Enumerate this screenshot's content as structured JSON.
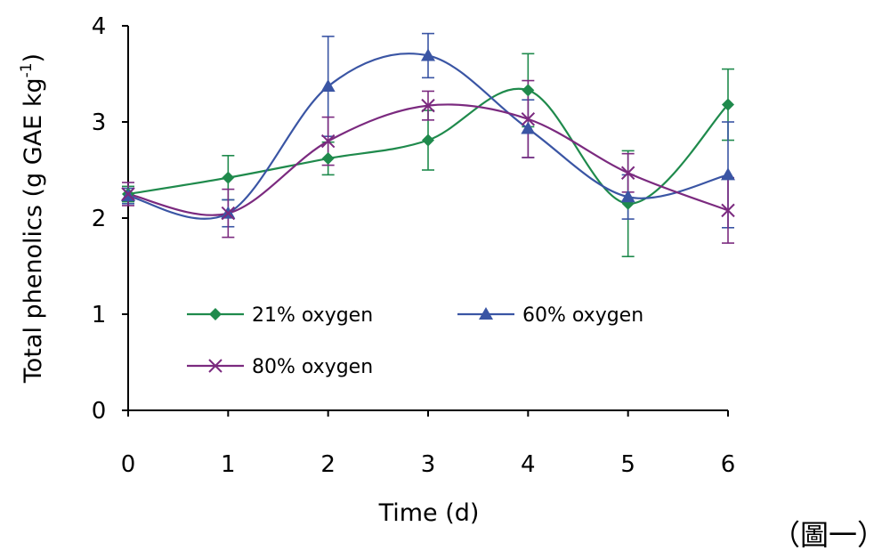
{
  "chart_data": {
    "type": "line",
    "title": "",
    "xlabel": "Time (d)",
    "ylabel_main": "Total phenolics (g GAE kg",
    "ylabel_sup": "-1",
    "ylabel_close": ")",
    "x": [
      0,
      1,
      2,
      3,
      4,
      5,
      6
    ],
    "x_tick_labels": [
      "0",
      "1",
      "2",
      "3",
      "4",
      "5",
      "6"
    ],
    "xlim": [
      0,
      6
    ],
    "ylim": [
      0,
      4
    ],
    "y_ticks": [
      0,
      1,
      2,
      3,
      4
    ],
    "y_tick_labels": [
      "0",
      "1",
      "2",
      "3",
      "4"
    ],
    "grid": false,
    "legend_position": "lower-left inside",
    "series": [
      {
        "name": "21% oxygen",
        "color": "#1f8a4c",
        "marker": "diamond",
        "values": [
          2.25,
          2.42,
          2.62,
          2.81,
          3.33,
          2.15,
          3.18
        ],
        "errors": [
          0.08,
          0.23,
          0.17,
          0.31,
          0.38,
          0.55,
          0.37
        ]
      },
      {
        "name": "60% oxygen",
        "color": "#3a55a4",
        "marker": "triangle",
        "values": [
          2.23,
          2.05,
          3.37,
          3.69,
          2.93,
          2.22,
          2.45
        ],
        "errors": [
          0.08,
          0.14,
          0.52,
          0.23,
          0.3,
          0.23,
          0.55
        ]
      },
      {
        "name": "80% oxygen",
        "color": "#7b2a7f",
        "marker": "x",
        "values": [
          2.25,
          2.05,
          2.8,
          3.17,
          3.03,
          2.47,
          2.08
        ],
        "errors": [
          0.12,
          0.25,
          0.25,
          0.15,
          0.4,
          0.2,
          0.34
        ]
      }
    ]
  },
  "caption": "（圖一）"
}
